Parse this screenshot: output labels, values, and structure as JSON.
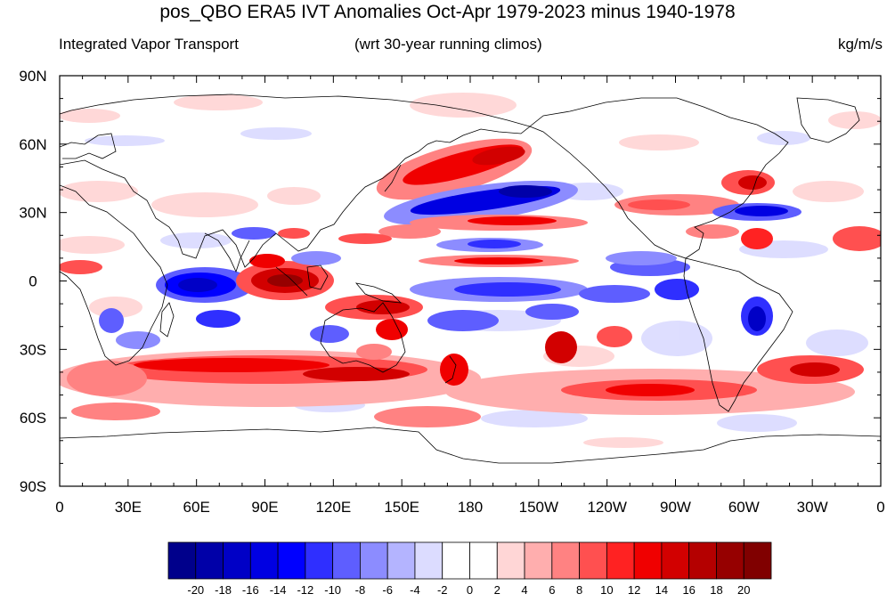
{
  "title": "pos_QBO ERA5 IVT Anomalies Oct-Apr 1979-2023 minus 1940-1978",
  "left_string": "Integrated Vapor Transport",
  "center_string": "(wrt 30-year running climos)",
  "right_string": "kg/m/s",
  "map": {
    "projection": "cylindrical-equidistant",
    "lon_range": [
      0,
      360
    ],
    "lat_range": [
      -90,
      90
    ],
    "lon_tick_labels": [
      "0",
      "30E",
      "60E",
      "90E",
      "120E",
      "150E",
      "180",
      "150W",
      "120W",
      "90W",
      "60W",
      "30W",
      "0"
    ],
    "lat_tick_labels": [
      "90N",
      "60N",
      "30N",
      "0",
      "30S",
      "60S",
      "90S"
    ],
    "coastlines": true
  },
  "colorbar": {
    "labels": [
      "-20",
      "-18",
      "-16",
      "-14",
      "-12",
      "-10",
      "-8",
      "-6",
      "-4",
      "-2",
      "0",
      "2",
      "4",
      "6",
      "8",
      "10",
      "12",
      "14",
      "16",
      "18",
      "20"
    ],
    "colors": [
      "#00008b",
      "#0000a8",
      "#0000c6",
      "#0000e2",
      "#0000ff",
      "#2f2fff",
      "#5e5eff",
      "#8c8cff",
      "#b4b4ff",
      "#dcdcff",
      "#ffffff",
      "#ffffff",
      "#ffd6d6",
      "#ffaeae",
      "#ff8282",
      "#ff5050",
      "#ff2222",
      "#f00000",
      "#d20000",
      "#b40000",
      "#960000",
      "#800000"
    ]
  }
}
